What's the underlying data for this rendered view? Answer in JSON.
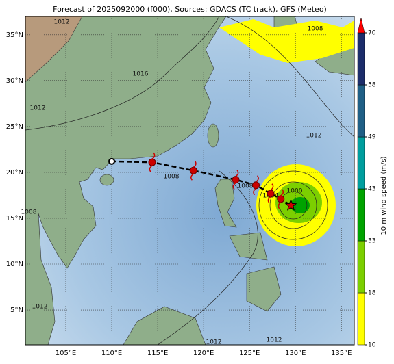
{
  "map": {
    "title": "Forecast of 2025092000 (f000), Sources: GDACS (TC track), GFS (Meteo)",
    "xlim": [
      100.6,
      136.4
    ],
    "ylim": [
      1.2,
      37
    ],
    "lon_ticks": [
      {
        "value": 105,
        "label": "105°E"
      },
      {
        "value": 110,
        "label": "110°E"
      },
      {
        "value": 115,
        "label": "115°E"
      },
      {
        "value": 120,
        "label": "120°E"
      },
      {
        "value": 125,
        "label": "125°E"
      },
      {
        "value": 130,
        "label": "130°E"
      },
      {
        "value": 135,
        "label": "135°E"
      }
    ],
    "lat_ticks": [
      {
        "value": 5,
        "label": "5°N"
      },
      {
        "value": 10,
        "label": "10°N"
      },
      {
        "value": 15,
        "label": "15°N"
      },
      {
        "value": 20,
        "label": "20°N"
      },
      {
        "value": 25,
        "label": "25°N"
      },
      {
        "value": 30,
        "label": "30°N"
      },
      {
        "value": 35,
        "label": "35°N"
      }
    ],
    "track": {
      "lon": [
        110.0,
        114.4,
        118.9,
        123.5,
        125.7,
        127.3,
        128.4,
        129.5
      ],
      "lat": [
        21.2,
        21.1,
        20.2,
        19.2,
        18.6,
        17.7,
        17.1,
        16.4
      ],
      "color": "#cc0000"
    },
    "contour_labels": [
      "1012",
      "1016",
      "1012",
      "1008",
      "1008",
      "1004",
      "1000",
      "1008",
      "1012",
      "1008",
      "1012",
      "1012",
      "1012"
    ],
    "colorbar": {
      "label": "10 m wind speed (m/s)",
      "ticks": [
        10,
        18,
        33,
        43,
        49,
        58,
        70
      ],
      "colors": [
        "#ffff00",
        "#7ccf00",
        "#00a300",
        "#009e9e",
        "#1f5f86",
        "#1c2d6b"
      ]
    }
  }
}
